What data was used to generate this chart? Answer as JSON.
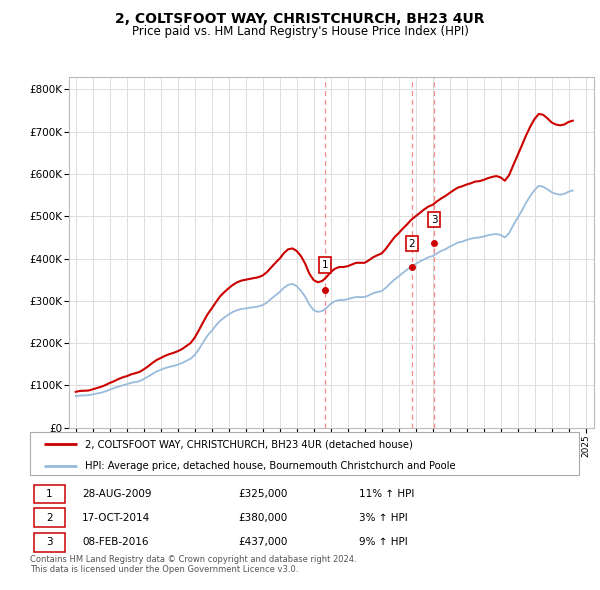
{
  "title": "2, COLTSFOOT WAY, CHRISTCHURCH, BH23 4UR",
  "subtitle": "Price paid vs. HM Land Registry's House Price Index (HPI)",
  "title_fontsize": 10,
  "subtitle_fontsize": 8.5,
  "ylabel_ticks": [
    "£0",
    "£100K",
    "£200K",
    "£300K",
    "£400K",
    "£500K",
    "£600K",
    "£700K",
    "£800K"
  ],
  "ytick_values": [
    0,
    100000,
    200000,
    300000,
    400000,
    500000,
    600000,
    700000,
    800000
  ],
  "ylim": [
    0,
    830000
  ],
  "xlim_start": 1994.6,
  "xlim_end": 2025.5,
  "xtick_years": [
    1995,
    1996,
    1997,
    1998,
    1999,
    2000,
    2001,
    2002,
    2003,
    2004,
    2005,
    2006,
    2007,
    2008,
    2009,
    2010,
    2011,
    2012,
    2013,
    2014,
    2015,
    2016,
    2017,
    2018,
    2019,
    2020,
    2021,
    2022,
    2023,
    2024,
    2025
  ],
  "red_line_color": "#cc0000",
  "blue_line_color": "#99bbdd",
  "grid_color": "#dddddd",
  "purchase_dates": [
    2009.66,
    2014.79,
    2016.1
  ],
  "purchase_prices": [
    325000,
    380000,
    437000
  ],
  "purchase_labels": [
    "1",
    "2",
    "3"
  ],
  "vline_color": "#ff8888",
  "legend_label_red": "2, COLTSFOOT WAY, CHRISTCHURCH, BH23 4UR (detached house)",
  "legend_label_blue": "HPI: Average price, detached house, Bournemouth Christchurch and Poole",
  "table_rows": [
    {
      "label": "1",
      "date": "28-AUG-2009",
      "price": "£325,000",
      "hpi": "11% ↑ HPI"
    },
    {
      "label": "2",
      "date": "17-OCT-2014",
      "price": "£380,000",
      "hpi": "3% ↑ HPI"
    },
    {
      "label": "3",
      "date": "08-FEB-2016",
      "price": "£437,000",
      "hpi": "9% ↑ HPI"
    }
  ],
  "footnote": "Contains HM Land Registry data © Crown copyright and database right 2024.\nThis data is licensed under the Open Government Licence v3.0.",
  "hpi_data": {
    "years": [
      1995.0,
      1995.25,
      1995.5,
      1995.75,
      1996.0,
      1996.25,
      1996.5,
      1996.75,
      1997.0,
      1997.25,
      1997.5,
      1997.75,
      1998.0,
      1998.25,
      1998.5,
      1998.75,
      1999.0,
      1999.25,
      1999.5,
      1999.75,
      2000.0,
      2000.25,
      2000.5,
      2000.75,
      2001.0,
      2001.25,
      2001.5,
      2001.75,
      2002.0,
      2002.25,
      2002.5,
      2002.75,
      2003.0,
      2003.25,
      2003.5,
      2003.75,
      2004.0,
      2004.25,
      2004.5,
      2004.75,
      2005.0,
      2005.25,
      2005.5,
      2005.75,
      2006.0,
      2006.25,
      2006.5,
      2006.75,
      2007.0,
      2007.25,
      2007.5,
      2007.75,
      2008.0,
      2008.25,
      2008.5,
      2008.75,
      2009.0,
      2009.25,
      2009.5,
      2009.75,
      2010.0,
      2010.25,
      2010.5,
      2010.75,
      2011.0,
      2011.25,
      2011.5,
      2011.75,
      2012.0,
      2012.25,
      2012.5,
      2012.75,
      2013.0,
      2013.25,
      2013.5,
      2013.75,
      2014.0,
      2014.25,
      2014.5,
      2014.75,
      2015.0,
      2015.25,
      2015.5,
      2015.75,
      2016.0,
      2016.25,
      2016.5,
      2016.75,
      2017.0,
      2017.25,
      2017.5,
      2017.75,
      2018.0,
      2018.25,
      2018.5,
      2018.75,
      2019.0,
      2019.25,
      2019.5,
      2019.75,
      2020.0,
      2020.25,
      2020.5,
      2020.75,
      2021.0,
      2021.25,
      2021.5,
      2021.75,
      2022.0,
      2022.25,
      2022.5,
      2022.75,
      2023.0,
      2023.25,
      2023.5,
      2023.75,
      2024.0,
      2024.25
    ],
    "values": [
      75000,
      76000,
      76500,
      77000,
      79000,
      81000,
      83000,
      86000,
      90000,
      94000,
      97000,
      100000,
      103000,
      106000,
      108000,
      110000,
      115000,
      121000,
      127000,
      133000,
      137000,
      141000,
      144000,
      146000,
      149000,
      153000,
      158000,
      163000,
      172000,
      186000,
      202000,
      218000,
      229000,
      242000,
      253000,
      261000,
      268000,
      274000,
      278000,
      281000,
      282000,
      284000,
      285000,
      287000,
      290000,
      296000,
      305000,
      313000,
      321000,
      331000,
      338000,
      340000,
      335000,
      324000,
      310000,
      291000,
      278000,
      274000,
      276000,
      283000,
      293000,
      299000,
      302000,
      302000,
      304000,
      307000,
      309000,
      309000,
      309000,
      313000,
      318000,
      321000,
      323000,
      331000,
      341000,
      350000,
      358000,
      366000,
      374000,
      381000,
      387000,
      393000,
      398000,
      403000,
      406000,
      412000,
      418000,
      422000,
      428000,
      433000,
      438000,
      440000,
      444000,
      447000,
      449000,
      450000,
      452000,
      455000,
      457000,
      458000,
      456000,
      450000,
      460000,
      479000,
      496000,
      513000,
      532000,
      548000,
      562000,
      572000,
      570000,
      564000,
      557000,
      553000,
      551000,
      553000,
      558000,
      561000
    ]
  },
  "red_line_data": {
    "years": [
      1995.0,
      1995.25,
      1995.5,
      1995.75,
      1996.0,
      1996.25,
      1996.5,
      1996.75,
      1997.0,
      1997.25,
      1997.5,
      1997.75,
      1998.0,
      1998.25,
      1998.5,
      1998.75,
      1999.0,
      1999.25,
      1999.5,
      1999.75,
      2000.0,
      2000.25,
      2000.5,
      2000.75,
      2001.0,
      2001.25,
      2001.5,
      2001.75,
      2002.0,
      2002.25,
      2002.5,
      2002.75,
      2003.0,
      2003.25,
      2003.5,
      2003.75,
      2004.0,
      2004.25,
      2004.5,
      2004.75,
      2005.0,
      2005.25,
      2005.5,
      2005.75,
      2006.0,
      2006.25,
      2006.5,
      2006.75,
      2007.0,
      2007.25,
      2007.5,
      2007.75,
      2008.0,
      2008.25,
      2008.5,
      2008.75,
      2009.0,
      2009.25,
      2009.5,
      2009.75,
      2010.0,
      2010.25,
      2010.5,
      2010.75,
      2011.0,
      2011.25,
      2011.5,
      2011.75,
      2012.0,
      2012.25,
      2012.5,
      2012.75,
      2013.0,
      2013.25,
      2013.5,
      2013.75,
      2014.0,
      2014.25,
      2014.5,
      2014.75,
      2015.0,
      2015.25,
      2015.5,
      2015.75,
      2016.0,
      2016.25,
      2016.5,
      2016.75,
      2017.0,
      2017.25,
      2017.5,
      2017.75,
      2018.0,
      2018.25,
      2018.5,
      2018.75,
      2019.0,
      2019.25,
      2019.5,
      2019.75,
      2020.0,
      2020.25,
      2020.5,
      2020.75,
      2021.0,
      2021.25,
      2021.5,
      2021.75,
      2022.0,
      2022.25,
      2022.5,
      2022.75,
      2023.0,
      2023.25,
      2023.5,
      2023.75,
      2024.0,
      2024.25
    ],
    "values": [
      85000,
      87000,
      87500,
      88000,
      91000,
      94000,
      97000,
      101000,
      106000,
      110000,
      115000,
      119000,
      122000,
      126000,
      129000,
      132000,
      138000,
      145000,
      153000,
      160000,
      165000,
      170000,
      174000,
      177000,
      181000,
      186000,
      193000,
      200000,
      213000,
      231000,
      250000,
      268000,
      282000,
      297000,
      311000,
      321000,
      330000,
      338000,
      344000,
      348000,
      350000,
      352000,
      354000,
      356000,
      360000,
      368000,
      379000,
      390000,
      400000,
      413000,
      422000,
      424000,
      418000,
      406000,
      388000,
      364000,
      349000,
      344000,
      347000,
      356000,
      368000,
      376000,
      380000,
      380000,
      382000,
      386000,
      390000,
      390000,
      390000,
      396000,
      403000,
      408000,
      412000,
      423000,
      437000,
      450000,
      460000,
      471000,
      481000,
      492000,
      500000,
      508000,
      516000,
      523000,
      527000,
      535000,
      542000,
      548000,
      555000,
      562000,
      568000,
      571000,
      575000,
      578000,
      582000,
      583000,
      586000,
      590000,
      593000,
      595000,
      592000,
      584000,
      597000,
      621000,
      644000,
      667000,
      691000,
      712000,
      730000,
      742000,
      740000,
      732000,
      722000,
      717000,
      715000,
      717000,
      723000,
      726000
    ]
  }
}
